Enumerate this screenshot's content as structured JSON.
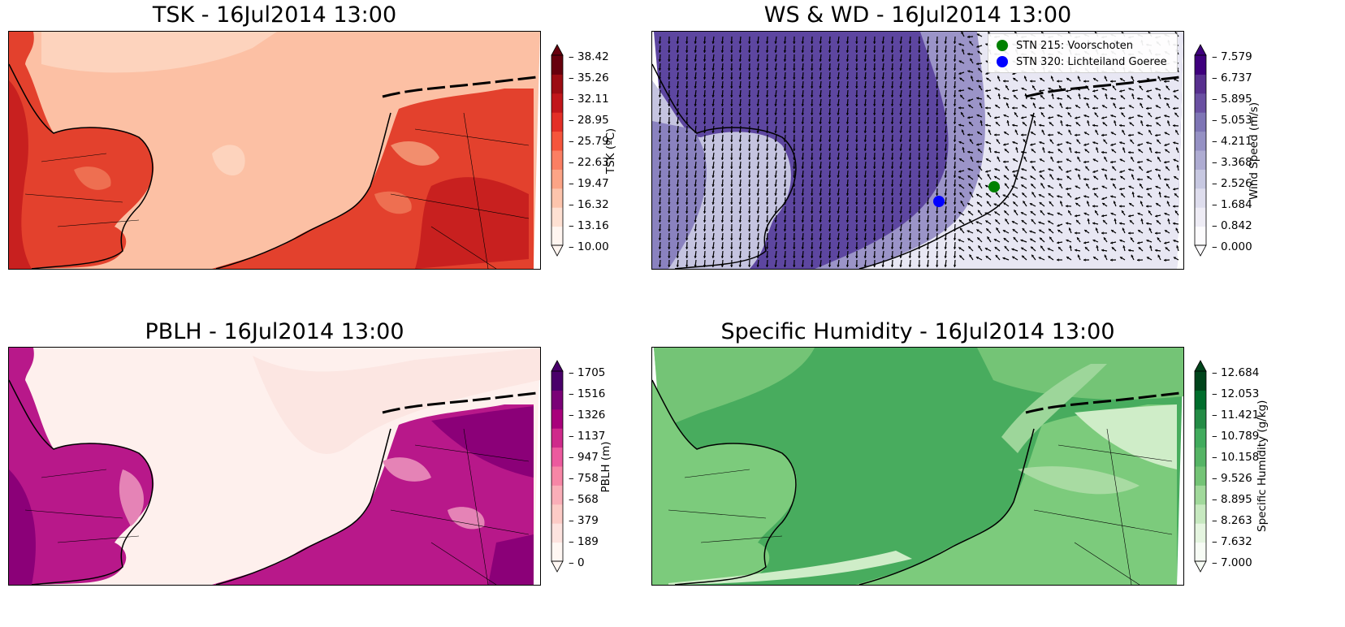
{
  "panels": [
    {
      "id": "tsk",
      "title": "TSK - 16Jul2014 13:00",
      "colorbar": {
        "label": "TSK (ºC)",
        "ticks": [
          "10.00",
          "13.16",
          "16.32",
          "19.47",
          "22.63",
          "25.79",
          "28.95",
          "32.11",
          "35.26",
          "38.42"
        ],
        "colors": [
          "#fff5f0",
          "#fee0d2",
          "#fdc4ac",
          "#fca486",
          "#fb7f63",
          "#f5553c",
          "#e32f27",
          "#c1161b",
          "#9c0c13",
          "#67000d"
        ]
      },
      "colors": {
        "sea": "#fcc0a4",
        "sea_light": "#fdd3bd",
        "land": "#e3412d",
        "land_dark": "#c8201f",
        "land_light": "#f07a5a"
      }
    },
    {
      "id": "ws-wd",
      "title": "WS & WD - 16Jul2014 13:00",
      "colorbar": {
        "label": "Wind Speed (m/s)",
        "ticks": [
          "0.000",
          "0.842",
          "1.684",
          "2.526",
          "3.368",
          "4.211",
          "5.053",
          "5.895",
          "6.737",
          "7.579"
        ],
        "colors": [
          "#fcfbfd",
          "#eeecf5",
          "#dedded",
          "#c7c8e1",
          "#aeacd2",
          "#9591c4",
          "#7e75b5",
          "#6a50a2",
          "#58308f",
          "#3f007d"
        ]
      },
      "legend": [
        {
          "label": "STN 215: Voorschoten",
          "color": "#008000"
        },
        {
          "label": "STN 320: Lichteiland Goeree",
          "color": "#0000ff"
        }
      ],
      "colors": {
        "sea": "#5d46a0",
        "sea_mid": "#8a82bf",
        "land": "#e8e7f3",
        "land_mid": "#c5c4e0",
        "arrow": "#000000"
      }
    },
    {
      "id": "pblh",
      "title": "PBLH - 16Jul2014 13:00",
      "colorbar": {
        "label": "PBLH (m)",
        "ticks": [
          "0",
          "189",
          "379",
          "568",
          "758",
          "947",
          "1137",
          "1326",
          "1516",
          "1705"
        ],
        "colors": [
          "#fff7f3",
          "#fde3df",
          "#fccbc6",
          "#faaeb8",
          "#f786a6",
          "#ec5a9e",
          "#cf2a8b",
          "#a8017b",
          "#7a0177",
          "#49006a"
        ]
      },
      "colors": {
        "sea": "#fef0ed",
        "land": "#b8188a",
        "land_dark": "#8b0078",
        "land_light": "#e583b6"
      }
    },
    {
      "id": "specific-humidity",
      "title": "Specific Humidity - 16Jul2014 13:00",
      "colorbar": {
        "label": "Specific Humidity (g/kg)",
        "ticks": [
          "7.000",
          "7.632",
          "8.263",
          "8.895",
          "9.526",
          "10.158",
          "10.789",
          "11.421",
          "12.053",
          "12.684"
        ],
        "colors": [
          "#f7fcf5",
          "#e5f5e0",
          "#c7e9c0",
          "#a1d99b",
          "#74c476",
          "#55b465",
          "#41ab5d",
          "#238b45",
          "#006d2c",
          "#00441b"
        ]
      },
      "colors": {
        "sea": "#48ac5e",
        "sea_light": "#74c476",
        "land": "#7ccb7c",
        "land_light": "#cfedc8"
      }
    }
  ]
}
